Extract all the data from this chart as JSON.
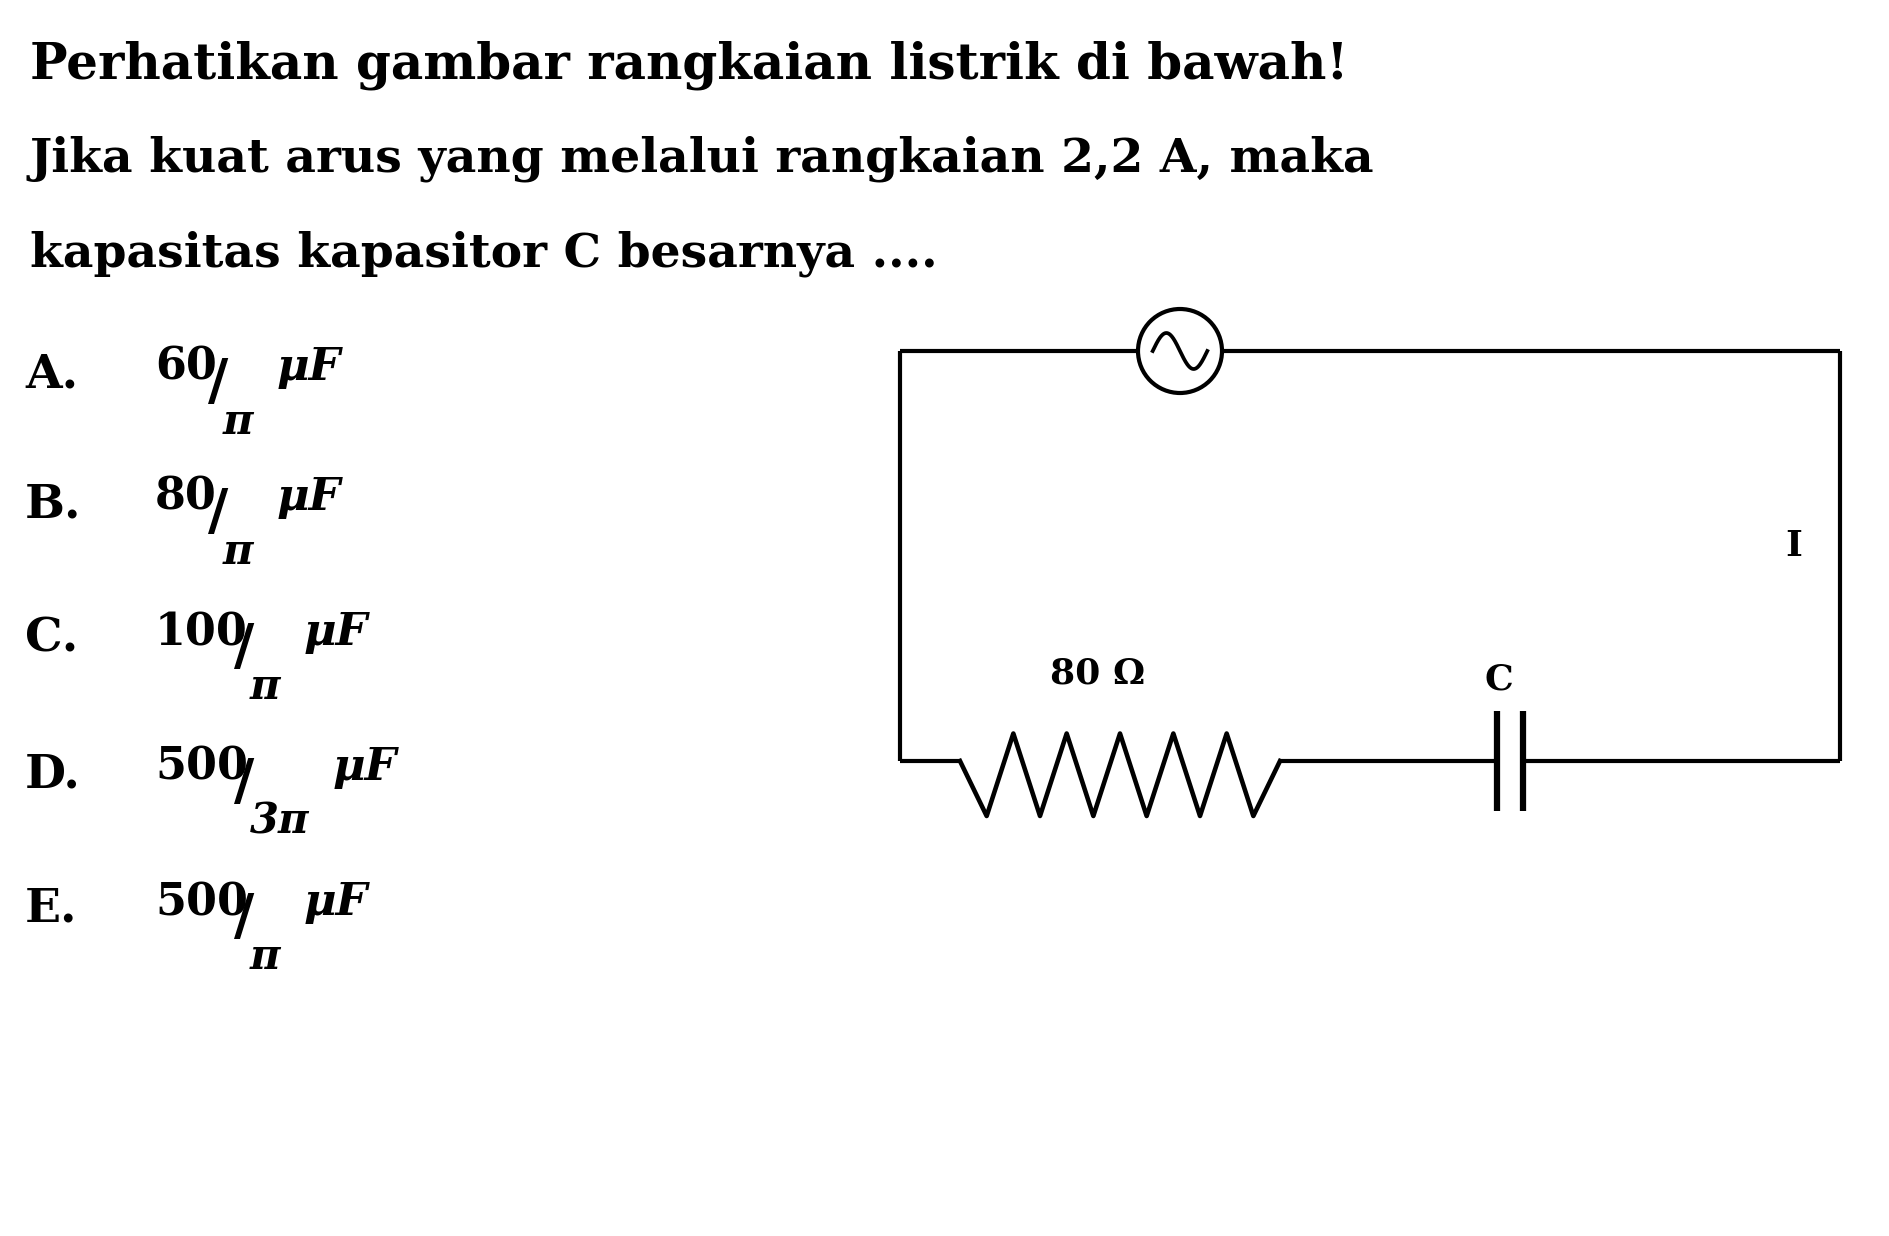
{
  "title1": "Perhatikan gambar rangkaian listrik di bawah!",
  "title2": "Jika kuat arus yang melalui rangkaian 2,2 A, maka",
  "title3": "kapasitas kapasitor C besarnya ....",
  "options": [
    {
      "label": "A.",
      "num": "60",
      "denom": "π",
      "unit": "μF"
    },
    {
      "label": "B.",
      "num": "80",
      "denom": "π",
      "unit": "μF"
    },
    {
      "label": "C.",
      "num": "100",
      "denom": "π",
      "unit": "μF"
    },
    {
      "label": "D.",
      "num": "500",
      "denom": "3π",
      "unit": "μF"
    },
    {
      "label": "E.",
      "num": "500",
      "denom": "π",
      "unit": "μF"
    }
  ],
  "circuit_label_R": "80 Ω",
  "circuit_label_C": "C",
  "circuit_label_I": "I",
  "bg_color": "#ffffff",
  "text_color": "#000000",
  "line_color": "#000000",
  "lw": 3.0
}
